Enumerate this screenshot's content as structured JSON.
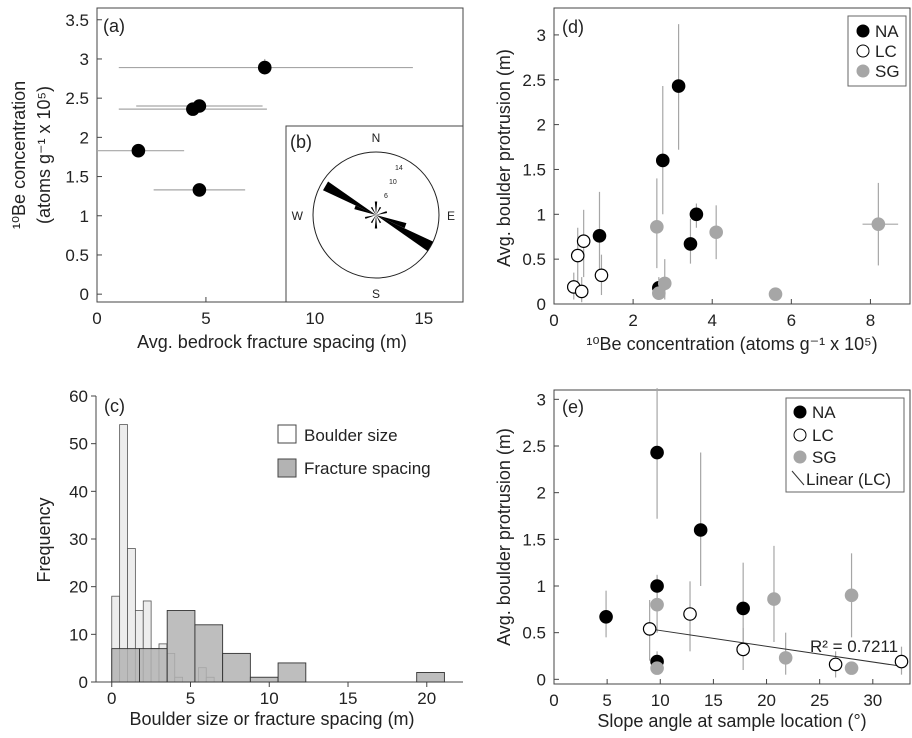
{
  "colors": {
    "NA": "#000000",
    "LC": "#ffffff",
    "SG": "#a6a6a6",
    "errorbar": "#a6a6a6",
    "hist_boulder": "#ededed",
    "hist_fracture": "#b3b3b3"
  },
  "panel_a": {
    "label": "(a)",
    "xlabel": "Avg. bedrock fracture spacing (m)",
    "ylabel_line1": "¹⁰Be concentration",
    "ylabel_line2": "(atoms g⁻¹ x 10⁵)",
    "xticks": [
      "0",
      "5",
      "10",
      "15"
    ],
    "yticks": [
      "0",
      "0.5",
      "1",
      "1.5",
      "2",
      "2.5",
      "3",
      "3.5"
    ]
  },
  "panel_b": {
    "label": "(b)",
    "north": "N",
    "south": "S",
    "east": "E",
    "west": "W",
    "rings": [
      "14",
      "10",
      "6"
    ]
  },
  "panel_c": {
    "label": "(c)",
    "xlabel": "Boulder size or fracture spacing (m)",
    "ylabel": "Frequency",
    "xticks": [
      "0",
      "5",
      "10",
      "15",
      "20"
    ],
    "yticks": [
      "0",
      "10",
      "20",
      "30",
      "40",
      "50",
      "60"
    ],
    "legend": [
      "Boulder size",
      "Fracture spacing"
    ]
  },
  "panel_d": {
    "label": "(d)",
    "xlabel": "¹⁰Be concentration  (atoms g⁻¹ x 10⁵)",
    "ylabel": "Avg. boulder protrusion (m)",
    "xticks": [
      "0",
      "2",
      "4",
      "6",
      "8"
    ],
    "yticks": [
      "0",
      "0.5",
      "1",
      "1.5",
      "2",
      "2.5",
      "3"
    ],
    "legend": [
      "NA",
      "LC",
      "SG"
    ]
  },
  "panel_e": {
    "label": "(e)",
    "xlabel": "Slope angle at sample location (°)",
    "ylabel": "Avg. boulder protrusion (m)",
    "xticks": [
      "0",
      "5",
      "10",
      "15",
      "20",
      "25",
      "30"
    ],
    "yticks": [
      "0",
      "0.5",
      "1",
      "1.5",
      "2",
      "2.5",
      "3"
    ],
    "legend": [
      "NA",
      "LC",
      "SG",
      "Linear (LC)"
    ],
    "annotation": "R² = 0.7211"
  },
  "chart_data": [
    {
      "panel": "a",
      "type": "scatter",
      "xlim": [
        0,
        16.8
      ],
      "ylim": [
        -0.1,
        3.65
      ],
      "points": [
        {
          "x": 7.7,
          "y": 2.89,
          "xerr": [
            1.0,
            14.5
          ],
          "yerr": [
            2.8,
            3.0
          ]
        },
        {
          "x": 4.7,
          "y": 2.4,
          "xerr": [
            1.8,
            7.6
          ],
          "yerr": [
            2.33,
            2.47
          ]
        },
        {
          "x": 4.4,
          "y": 2.36,
          "xerr": [
            1.0,
            7.8
          ],
          "yerr": [
            2.29,
            2.43
          ]
        },
        {
          "x": 1.9,
          "y": 1.83,
          "xerr": [
            0,
            4.0
          ],
          "yerr": [
            1.78,
            1.88
          ]
        },
        {
          "x": 4.7,
          "y": 1.33,
          "xerr": [
            2.6,
            6.8
          ],
          "yerr": [
            1.3,
            1.36
          ]
        }
      ]
    },
    {
      "panel": "b",
      "type": "rose",
      "max_count": 14,
      "petals": [
        {
          "azimuth": 120,
          "length": 14
        },
        {
          "azimuth": 300,
          "length": 13
        },
        {
          "azimuth": 110,
          "length": 7
        },
        {
          "azimuth": 290,
          "length": 5
        },
        {
          "azimuth": 0,
          "length": 3
        },
        {
          "azimuth": 180,
          "length": 3
        },
        {
          "azimuth": 30,
          "length": 2
        },
        {
          "azimuth": 210,
          "length": 2
        },
        {
          "azimuth": 75,
          "length": 2.5
        },
        {
          "azimuth": 255,
          "length": 2.5
        },
        {
          "azimuth": 150,
          "length": 2
        },
        {
          "azimuth": 330,
          "length": 2
        }
      ]
    },
    {
      "panel": "c",
      "type": "bar",
      "xlim": [
        -1,
        22.3
      ],
      "ylim": [
        0,
        60
      ],
      "series": [
        {
          "name": "Boulder size",
          "bin_width": 0.5,
          "bins": [
            [
              0.25,
              18
            ],
            [
              0.75,
              54
            ],
            [
              1.25,
              28
            ],
            [
              1.75,
              15
            ],
            [
              2.25,
              17
            ],
            [
              2.75,
              7
            ],
            [
              3.25,
              8
            ],
            [
              3.75,
              6
            ],
            [
              4.25,
              1
            ],
            [
              5.75,
              3
            ],
            [
              6.25,
              1
            ]
          ]
        },
        {
          "name": "Fracture spacing",
          "bin_width": 1.76,
          "bins": [
            [
              0.88,
              7
            ],
            [
              2.64,
              7
            ],
            [
              4.4,
              15
            ],
            [
              6.16,
              12
            ],
            [
              7.92,
              6
            ],
            [
              9.68,
              1
            ],
            [
              11.44,
              4
            ],
            [
              20.24,
              2
            ]
          ]
        }
      ]
    },
    {
      "panel": "d",
      "type": "scatter",
      "xlim": [
        0,
        9.0
      ],
      "ylim": [
        0,
        3.3
      ],
      "series": [
        {
          "name": "NA",
          "points": [
            {
              "x": 3.15,
              "y": 2.43,
              "yerr": [
                1.72,
                3.12
              ]
            },
            {
              "x": 2.75,
              "y": 1.6,
              "yerr": [
                1.0,
                2.43
              ]
            },
            {
              "x": 3.6,
              "y": 1.0,
              "yerr": [
                0.85,
                1.12
              ]
            },
            {
              "x": 1.15,
              "y": 0.76,
              "yerr": [
                0.3,
                1.25
              ]
            },
            {
              "x": 3.45,
              "y": 0.67,
              "yerr": [
                0.45,
                0.95
              ]
            },
            {
              "x": 2.65,
              "y": 0.18,
              "yerr": [
                0.1,
                0.3
              ]
            }
          ]
        },
        {
          "name": "LC",
          "points": [
            {
              "x": 0.75,
              "y": 0.7,
              "yerr": [
                0.3,
                1.05
              ]
            },
            {
              "x": 0.6,
              "y": 0.54,
              "yerr": [
                0.2,
                0.85
              ]
            },
            {
              "x": 1.2,
              "y": 0.32,
              "yerr": [
                0.1,
                0.55
              ]
            },
            {
              "x": 0.5,
              "y": 0.19,
              "yerr": [
                0.05,
                0.35
              ]
            },
            {
              "x": 0.7,
              "y": 0.14,
              "yerr": [
                0.02,
                0.3
              ]
            }
          ]
        },
        {
          "name": "SG",
          "points": [
            {
              "x": 8.2,
              "y": 0.89,
              "xerr": [
                7.8,
                8.7
              ],
              "yerr": [
                0.43,
                1.35
              ]
            },
            {
              "x": 2.6,
              "y": 0.86,
              "yerr": [
                0.4,
                1.4
              ]
            },
            {
              "x": 4.1,
              "y": 0.8,
              "yerr": [
                0.5,
                1.1
              ]
            },
            {
              "x": 2.8,
              "y": 0.23,
              "yerr": [
                0.05,
                0.5
              ]
            },
            {
              "x": 2.65,
              "y": 0.12
            },
            {
              "x": 5.6,
              "y": 0.11
            }
          ]
        }
      ]
    },
    {
      "panel": "e",
      "type": "scatter",
      "xlim": [
        0,
        33.5
      ],
      "ylim": [
        -0.05,
        3.1
      ],
      "series": [
        {
          "name": "NA",
          "points": [
            {
              "x": 9.7,
              "y": 2.43,
              "yerr": [
                1.72,
                3.12
              ]
            },
            {
              "x": 13.8,
              "y": 1.6,
              "yerr": [
                1.0,
                2.43
              ]
            },
            {
              "x": 9.7,
              "y": 1.0,
              "yerr": [
                0.85,
                1.12
              ]
            },
            {
              "x": 17.8,
              "y": 0.76,
              "yerr": [
                0.3,
                1.25
              ]
            },
            {
              "x": 4.9,
              "y": 0.67,
              "yerr": [
                0.45,
                0.95
              ]
            },
            {
              "x": 9.7,
              "y": 0.19,
              "yerr": [
                0.1,
                0.3
              ]
            }
          ]
        },
        {
          "name": "LC",
          "points": [
            {
              "x": 12.8,
              "y": 0.7,
              "yerr": [
                0.3,
                1.05
              ]
            },
            {
              "x": 9.0,
              "y": 0.54,
              "yerr": [
                0.2,
                0.85
              ]
            },
            {
              "x": 17.8,
              "y": 0.32,
              "yerr": [
                0.1,
                0.55
              ]
            },
            {
              "x": 26.5,
              "y": 0.16,
              "yerr": [
                0.02,
                0.3
              ]
            },
            {
              "x": 32.7,
              "y": 0.19,
              "yerr": [
                0.05,
                0.35
              ]
            }
          ]
        },
        {
          "name": "SG",
          "points": [
            {
              "x": 20.7,
              "y": 0.86,
              "yerr": [
                0.4,
                1.43
              ]
            },
            {
              "x": 28.0,
              "y": 0.9,
              "yerr": [
                0.45,
                1.35
              ]
            },
            {
              "x": 9.7,
              "y": 0.8,
              "yerr": [
                0.5,
                1.1
              ]
            },
            {
              "x": 21.8,
              "y": 0.23,
              "yerr": [
                0.05,
                0.5
              ]
            },
            {
              "x": 9.7,
              "y": 0.12
            },
            {
              "x": 28.0,
              "y": 0.12
            }
          ]
        }
      ],
      "fit": {
        "name": "Linear (LC)",
        "x": [
          9.0,
          32.7
        ],
        "y": [
          0.54,
          0.14
        ]
      }
    }
  ]
}
